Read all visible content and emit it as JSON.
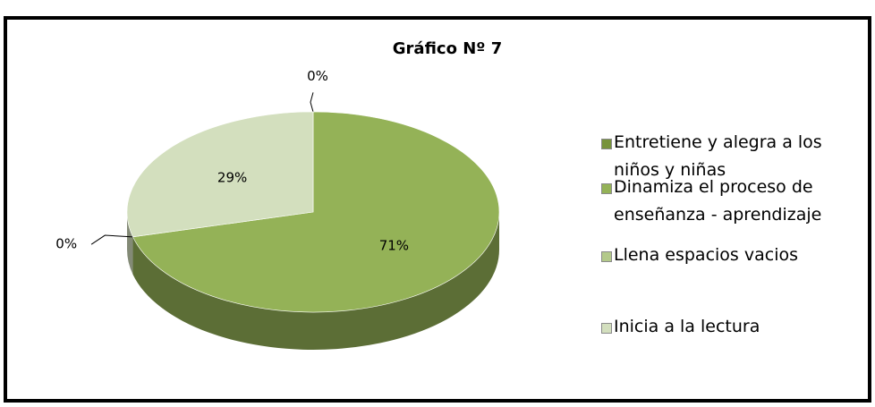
{
  "chart_data": {
    "type": "pie",
    "title": "Gráfico Nº 7",
    "categories": [
      "Entretiene y alegra a los niños y niñas",
      "Dinamiza el proceso de enseñanza - aprendizaje",
      "Llena espacios vacios",
      "Inicia a la lectura"
    ],
    "values": [
      0,
      71,
      0,
      29
    ],
    "value_labels": [
      "0%",
      "71%",
      "0%",
      "29%"
    ],
    "colors": [
      "#77933c",
      "#94b257",
      "#b3c98a",
      "#d3dfbe"
    ],
    "legend": "right"
  }
}
